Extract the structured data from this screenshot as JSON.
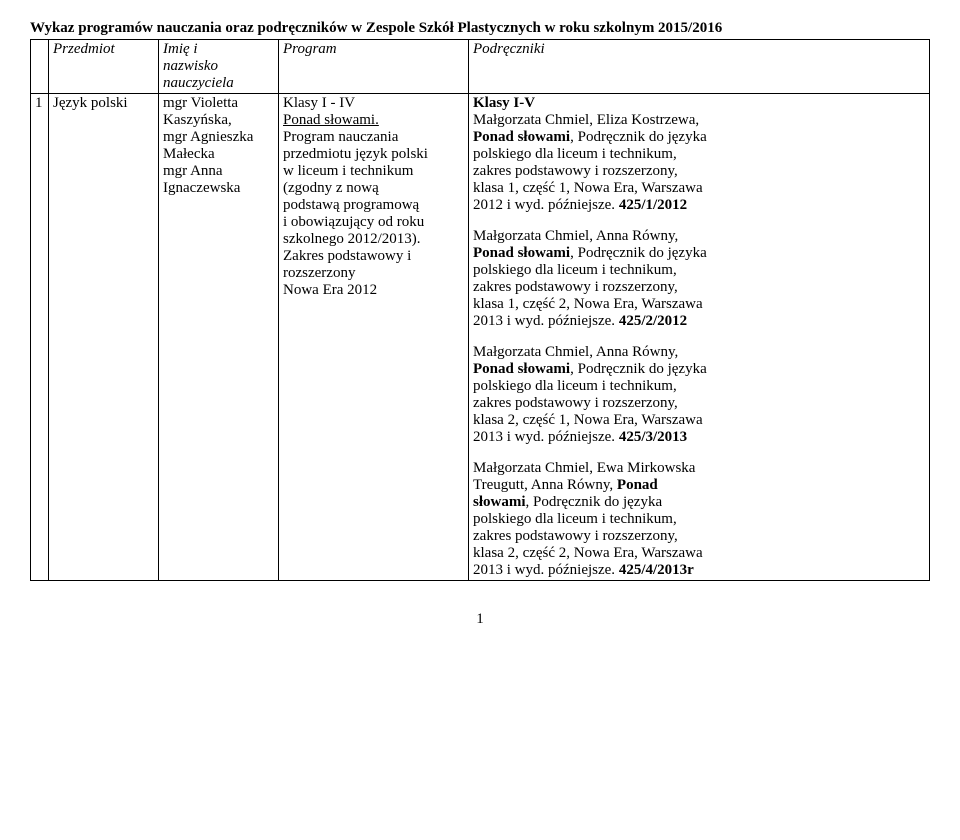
{
  "title": "Wykaz programów nauczania oraz podręczników w Zespole Szkół Plastycznych w roku szkolnym 2015/2016",
  "header": {
    "col1": "Przedmiot",
    "col2_line1": "Imię i",
    "col2_line2": "nazwisko",
    "col2_line3": "nauczyciela",
    "col3": "Program",
    "col4": "Podręczniki"
  },
  "row": {
    "num": "1",
    "subject": "Język polski",
    "teachers": {
      "l1": "mgr Violetta",
      "l2": "Kaszyńska,",
      "l3": "mgr Agnieszka",
      "l4": "Małecka",
      "l5": "mgr Anna",
      "l6": "Ignaczewska"
    },
    "program": {
      "l1": "Klasy I - IV",
      "l2": "Ponad słowami.",
      "l3": "Program nauczania",
      "l4": "przedmiotu język polski",
      "l5": "w liceum i technikum",
      "l6": "(zgodny z nową",
      "l7": "podstawą programową",
      "l8": "i obowiązujący od roku",
      "l9": "szkolnego 2012/2013).",
      "l10": "Zakres podstawowy i",
      "l11": "rozszerzony",
      "l12": "Nowa Era 2012"
    },
    "book1": {
      "head": "Klasy I-V",
      "l1a": "Małgorzata Chmiel, Eliza Kostrzewa,",
      "l2b": "Ponad słowami",
      "l2r": ", Podręcznik do języka",
      "l3": "polskiego dla liceum i technikum,",
      "l4": "zakres podstawowy i rozszerzony,",
      "l5": "klasa 1, część 1, Nowa Era, Warszawa",
      "l6a": "2012 i wyd. późniejsze. ",
      "l6b": "425/1/2012"
    },
    "book2": {
      "l1": "Małgorzata Chmiel, Anna Równy,",
      "l2b": "Ponad słowami",
      "l2r": ", Podręcznik do języka",
      "l3": "polskiego dla liceum i technikum,",
      "l4": "zakres podstawowy i rozszerzony,",
      "l5": "klasa 1, część 2, Nowa Era, Warszawa",
      "l6a": "2013 i wyd. późniejsze. ",
      "l6b": "425/2/2012"
    },
    "book3": {
      "l1": "Małgorzata Chmiel, Anna Równy,",
      "l2b": "Ponad słowami",
      "l2r": ", Podręcznik do języka",
      "l3": "polskiego dla liceum i technikum,",
      "l4": "zakres podstawowy i rozszerzony,",
      "l5": "klasa 2, część 1, Nowa Era, Warszawa",
      "l6a": "2013 i wyd. późniejsze. ",
      "l6b": "425/3/2013"
    },
    "book4": {
      "l1": "Małgorzata Chmiel, Ewa Mirkowska",
      "l2a": "Treugutt, Anna Równy, ",
      "l2b": "Ponad",
      "l3b": "słowami",
      "l3r": ", Podręcznik do języka",
      "l4": "polskiego dla liceum i technikum,",
      "l5": "zakres podstawowy i rozszerzony,",
      "l6": "klasa 2, część 2, Nowa Era, Warszawa",
      "l7a": "2013 i wyd. późniejsze. ",
      "l7b": "425/4/2013r"
    }
  },
  "pagenum": "1"
}
